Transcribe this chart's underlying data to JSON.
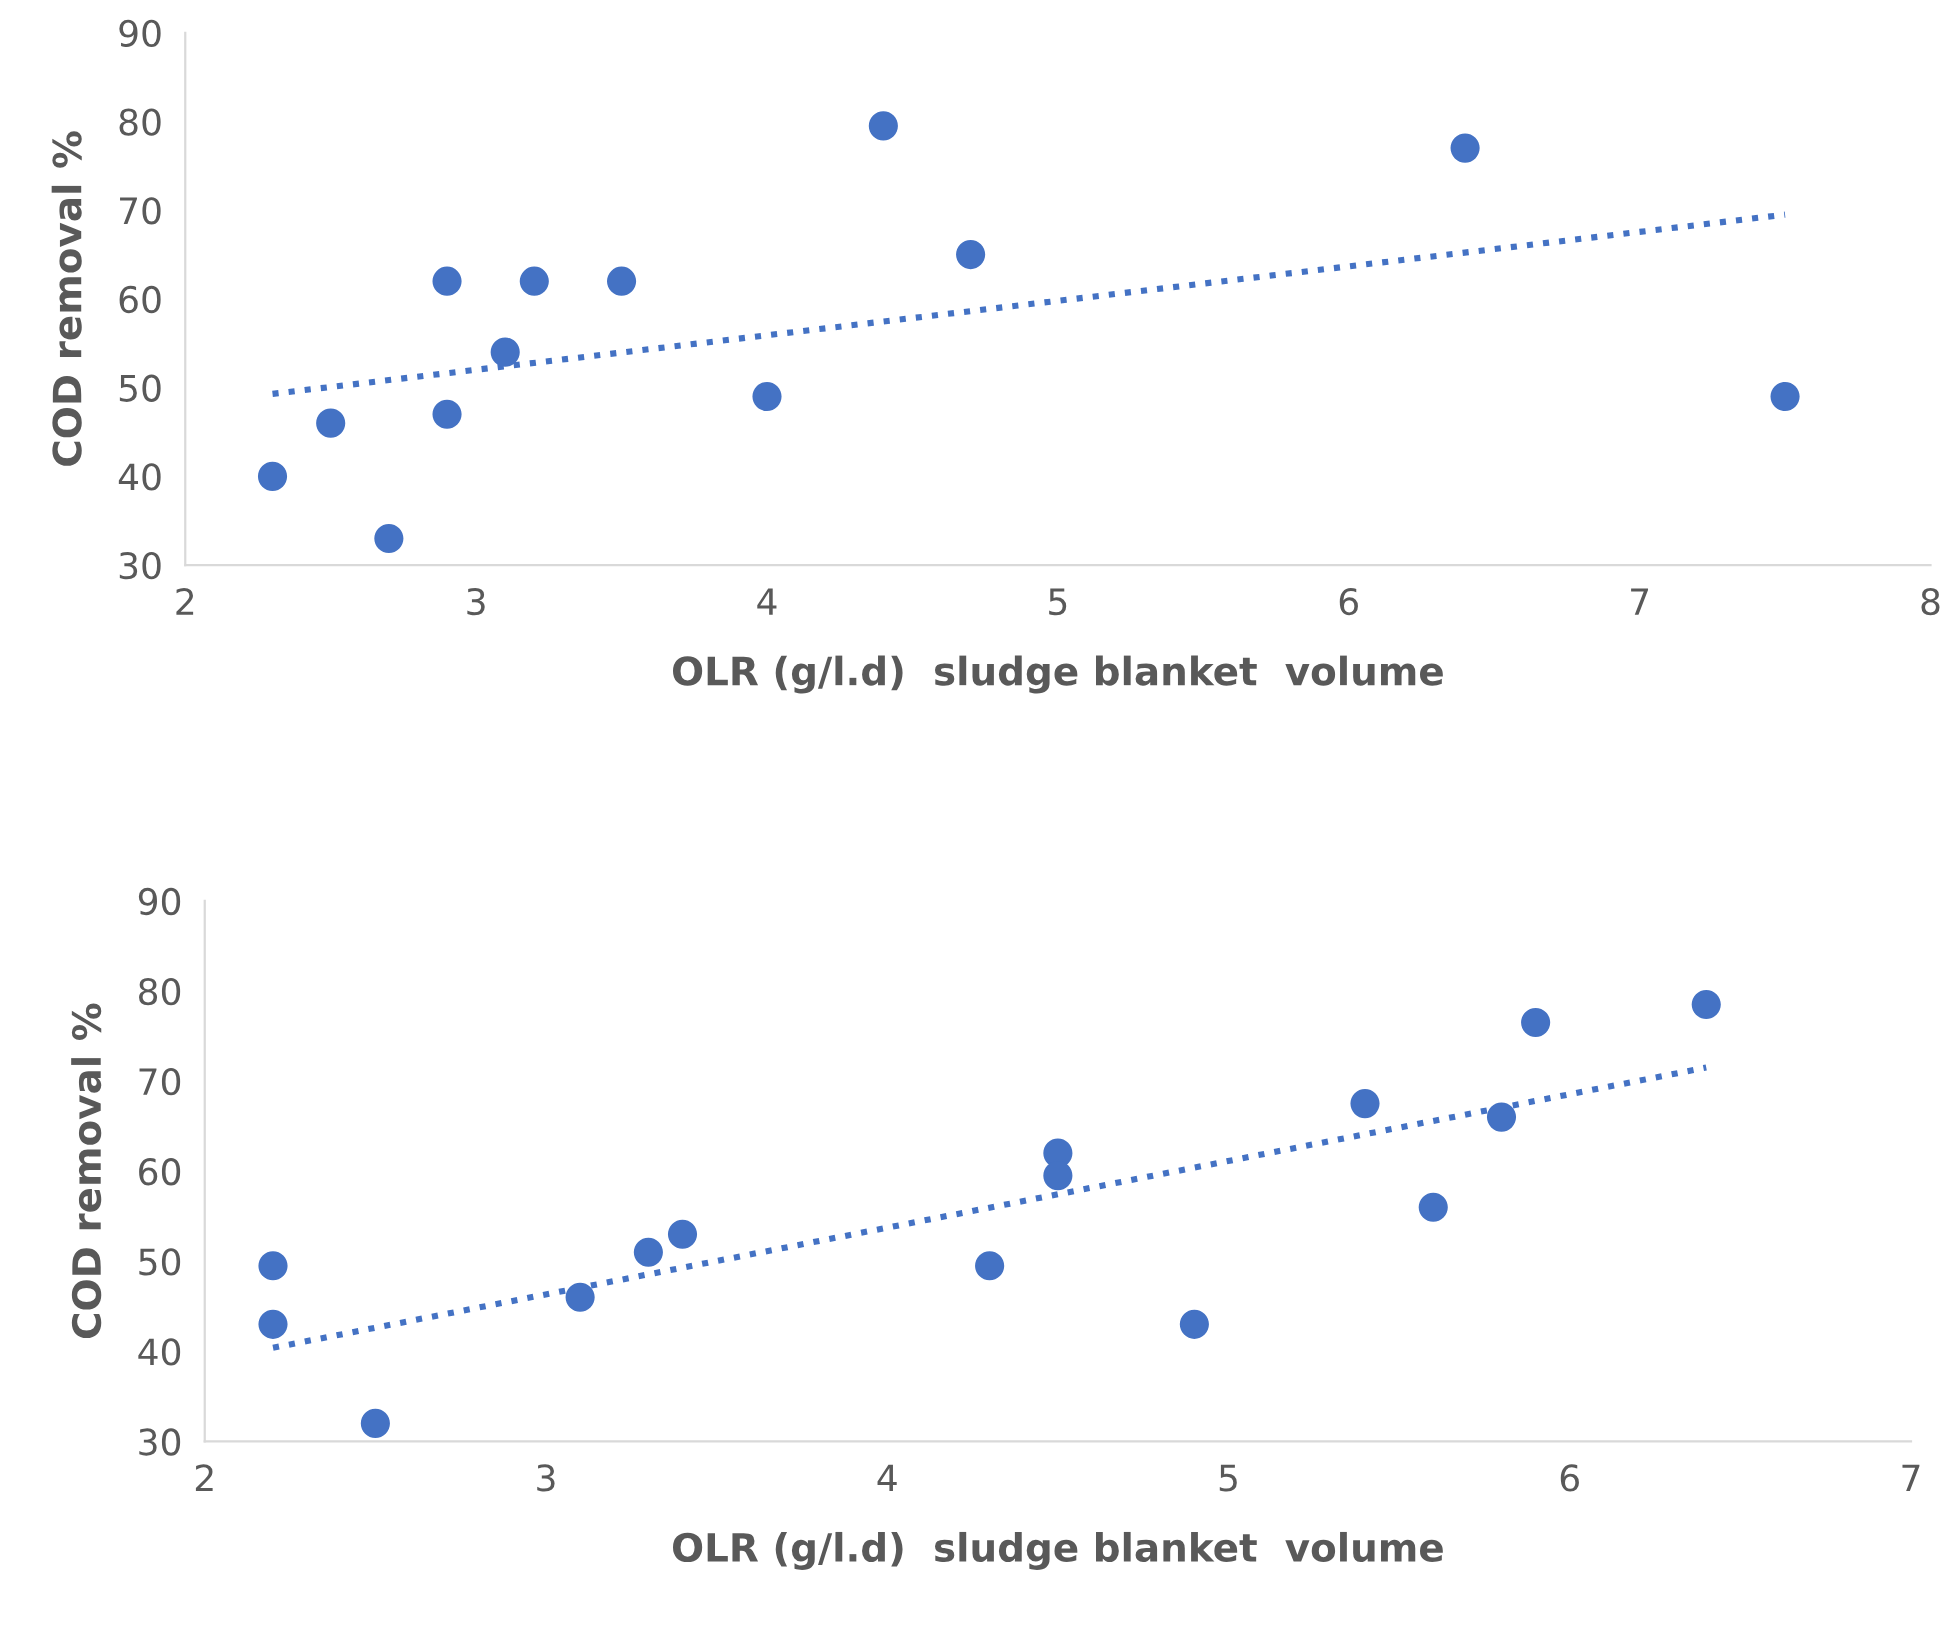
{
  "chart_data": [
    {
      "type": "scatter",
      "xlabel": "OLR (g/l.d)  sludge blanket  volume",
      "ylabel": "COD removal %",
      "xlim": [
        2,
        8
      ],
      "xticks": [
        2,
        3,
        4,
        5,
        6,
        7,
        8
      ],
      "ylim": [
        30,
        90
      ],
      "yticks": [
        30,
        40,
        50,
        60,
        70,
        80,
        90
      ],
      "grid": false,
      "legend": false,
      "marker": "circle",
      "series": [
        {
          "color": "#4472c4",
          "x": [
            2.3,
            2.5,
            2.7,
            2.9,
            2.9,
            3.1,
            3.2,
            3.5,
            4.0,
            4.4,
            4.7,
            6.4,
            7.5
          ],
          "values": [
            40,
            46,
            33,
            62,
            47,
            54,
            62,
            62,
            49,
            79.5,
            65,
            77,
            49
          ]
        },
        {
          "type": "line",
          "color": "#4472c4",
          "line_style": "dotted",
          "marker": "none",
          "x": [
            2.3,
            7.5
          ],
          "values": [
            49.3,
            69.5
          ]
        }
      ]
    },
    {
      "type": "scatter",
      "xlabel": "OLR (g/l.d)  sludge blanket  volume",
      "ylabel": "COD removal %",
      "xlim": [
        2,
        7
      ],
      "xticks": [
        2,
        3,
        4,
        5,
        6,
        7
      ],
      "ylim": [
        30,
        90
      ],
      "yticks": [
        30,
        40,
        50,
        60,
        70,
        80,
        90
      ],
      "grid": false,
      "legend": false,
      "marker": "circle",
      "series": [
        {
          "color": "#4472c4",
          "x": [
            2.2,
            2.2,
            2.5,
            3.1,
            3.3,
            3.4,
            4.3,
            4.5,
            4.5,
            4.9,
            5.4,
            5.6,
            5.8,
            5.9,
            6.4
          ],
          "values": [
            49.5,
            43,
            32,
            46,
            51,
            53,
            49.5,
            62,
            59.5,
            43,
            67.5,
            56,
            66,
            76.5,
            78.5
          ]
        },
        {
          "type": "line",
          "color": "#4472c4",
          "line_style": "dotted",
          "marker": "none",
          "x": [
            2.2,
            6.4
          ],
          "values": [
            40.4,
            71.5
          ]
        }
      ]
    }
  ]
}
